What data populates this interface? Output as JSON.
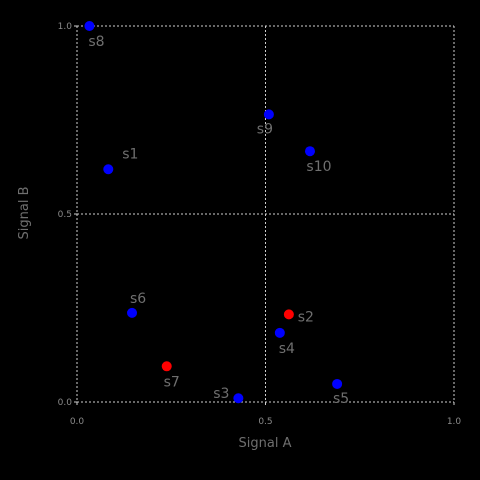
{
  "chart_data": {
    "type": "scatter",
    "xlabel": "Signal A",
    "ylabel": "Signal B",
    "xlim": [
      0.0,
      1.0
    ],
    "ylim": [
      0.0,
      1.0
    ],
    "xticks": [
      "0.0",
      "0.5",
      "1.0"
    ],
    "yticks": [
      "0.0",
      "0.5",
      "1.0"
    ],
    "grid": true,
    "points": [
      {
        "label": "s1",
        "x": 0.083,
        "y": 0.619,
        "color": "#0000ff"
      },
      {
        "label": "s2",
        "x": 0.562,
        "y": 0.233,
        "color": "#ff0000"
      },
      {
        "label": "s3",
        "x": 0.428,
        "y": 0.01,
        "color": "#0000ff"
      },
      {
        "label": "s4",
        "x": 0.538,
        "y": 0.184,
        "color": "#0000ff"
      },
      {
        "label": "s5",
        "x": 0.69,
        "y": 0.048,
        "color": "#0000ff"
      },
      {
        "label": "s6",
        "x": 0.146,
        "y": 0.237,
        "color": "#0000ff"
      },
      {
        "label": "s7",
        "x": 0.238,
        "y": 0.095,
        "color": "#ff0000"
      },
      {
        "label": "s8",
        "x": 0.033,
        "y": 1.0,
        "color": "#0000ff"
      },
      {
        "label": "s9",
        "x": 0.509,
        "y": 0.765,
        "color": "#0000ff"
      },
      {
        "label": "s10",
        "x": 0.618,
        "y": 0.667,
        "color": "#0000ff"
      }
    ]
  }
}
